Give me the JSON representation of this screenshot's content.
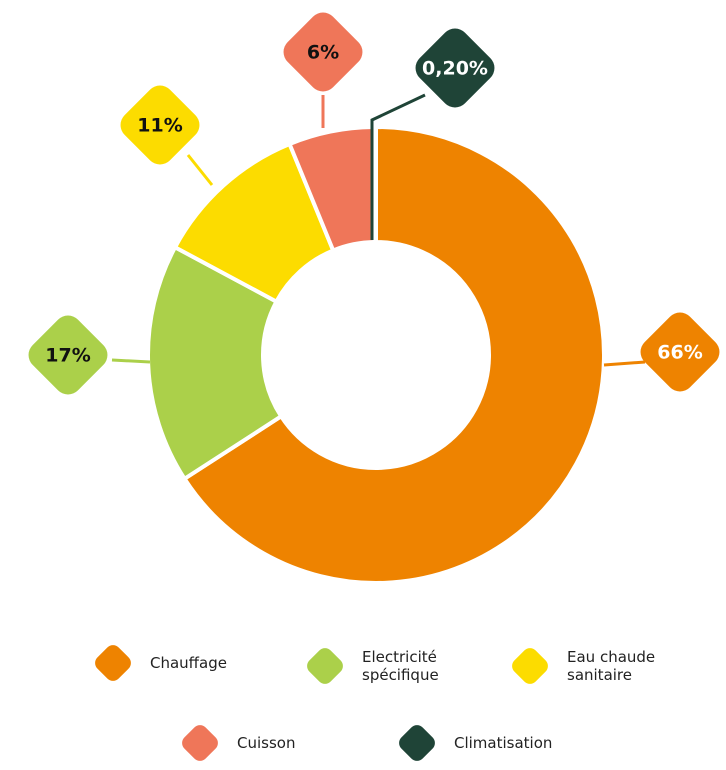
{
  "chart_data": {
    "type": "donut",
    "categories": [
      "Chauffage",
      "Electricité spécifique",
      "Eau chaude sanitaire",
      "Cuisson",
      "Climatisation"
    ],
    "values": [
      66,
      17,
      11,
      6,
      0.2
    ],
    "value_labels": [
      "66%",
      "17%",
      "11%",
      "6%",
      "0,20%"
    ],
    "colors": [
      "#ee8300",
      "#abd04a",
      "#fcdc00",
      "#ef7659",
      "#1f4437"
    ],
    "legend": "bottom"
  }
}
